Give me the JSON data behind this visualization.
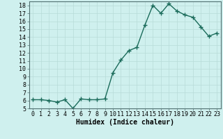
{
  "x": [
    0,
    1,
    2,
    3,
    4,
    5,
    6,
    7,
    8,
    9,
    10,
    11,
    12,
    13,
    14,
    15,
    16,
    17,
    18,
    19,
    20,
    21,
    22,
    23
  ],
  "y": [
    6.1,
    6.1,
    6.0,
    5.8,
    6.1,
    5.0,
    6.2,
    6.1,
    6.1,
    6.2,
    9.5,
    11.1,
    12.3,
    12.7,
    15.5,
    18.0,
    17.0,
    18.2,
    17.3,
    16.8,
    16.5,
    15.3,
    14.1,
    14.5
  ],
  "line_color": "#1a6b5a",
  "marker": "+",
  "marker_size": 4,
  "bg_color": "#cff0ee",
  "grid_color": "#b8dbd8",
  "xlabel": "Humidex (Indice chaleur)",
  "xlim": [
    -0.5,
    23.5
  ],
  "ylim": [
    5,
    18.5
  ],
  "yticks": [
    5,
    6,
    7,
    8,
    9,
    10,
    11,
    12,
    13,
    14,
    15,
    16,
    17,
    18
  ],
  "xtick_labels": [
    "0",
    "1",
    "2",
    "3",
    "4",
    "5",
    "6",
    "7",
    "8",
    "9",
    "10",
    "11",
    "12",
    "13",
    "14",
    "15",
    "16",
    "17",
    "18",
    "19",
    "20",
    "21",
    "22",
    "23"
  ],
  "xlabel_fontsize": 7,
  "tick_fontsize": 6,
  "line_width": 1.0
}
